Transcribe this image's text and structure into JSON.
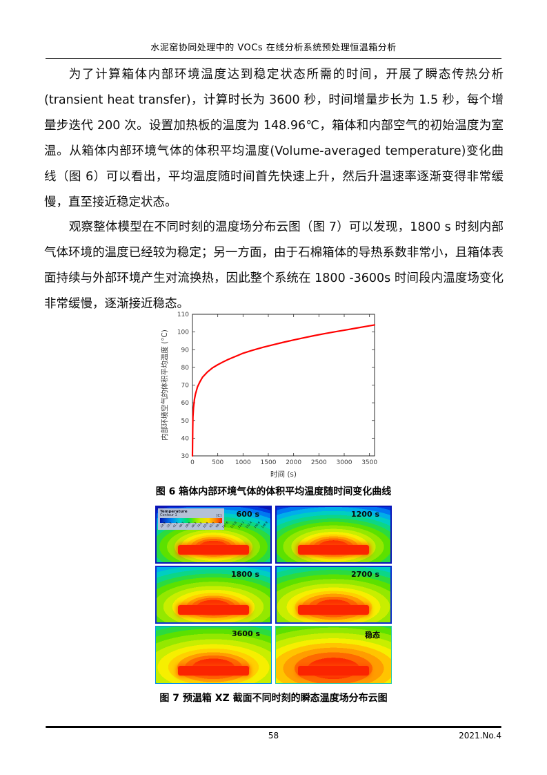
{
  "page": {
    "header": {
      "title": "水泥窑协同处理中的 VOCs 在线分析系统预处理恒温箱分析"
    },
    "paragraphs": [
      {
        "text": "为了计算箱体内部环境温度达到稳定状态所需的时间，开展了瞬态传热分析(transient heat transfer)，计算时长为 3600 秒，时间增量步长为 1.5 秒，每个增量步迭代 200 次。设置加热板的温度为 148.96℃，箱体和内部空气的初始温度为室温。从箱体内部环境气体的体积平均温度(Volume-averaged temperature)变化曲线（图 6）可以看出，平均温度随时间首先快速上升，然后升温速率逐渐变得非常缓慢，直至接近稳定状态。"
      },
      {
        "text": "观察整体模型在不同时刻的温度场分布云图（图 7）可以发现，1800 s 时刻内部气体环境的温度已经较为稳定；另一方面，由于石棉箱体的导热系数非常小，且箱体表面持续与外部环境产生对流换热，因此整个系统在 1800 -3600s 时间段内温度场变化非常缓慢，逐渐接近稳态。"
      }
    ],
    "figure6": {
      "caption": "图 6 箱体内部环境气体的体积平均温度随时间变化曲线"
    },
    "figure7": {
      "caption": "图 7 预温箱 XZ 截面不同时刻的瞬态温度场分布云图",
      "panels": [
        {
          "label": "600 s"
        },
        {
          "label": "1200 s"
        },
        {
          "label": "1800 s"
        },
        {
          "label": "2700 s"
        },
        {
          "label": "3600 s"
        },
        {
          "label": "稳态"
        }
      ],
      "legend": {
        "title": "Temperature",
        "subtitle": "Contour 1",
        "unit": "[C]",
        "ticks": [
          "24.9",
          "33.2",
          "41.4",
          "49.7",
          "58.0",
          "66.2",
          "74.5",
          "82.8",
          "91.0",
          "99.3",
          "107.6",
          "115.8",
          "124.1",
          "132.4",
          "140.6",
          "148.9"
        ]
      }
    },
    "footer": {
      "page_number": "58",
      "issue": "2021.No.4"
    }
  },
  "chart_data": {
    "type": "line",
    "title": "",
    "xlabel": "时间 (s)",
    "ylabel": "内部环境空气的体积平均温度 (°C)",
    "xlim": [
      0,
      3600
    ],
    "ylim": [
      30,
      110
    ],
    "xticks": [
      0,
      500,
      1000,
      1500,
      2000,
      2500,
      3000,
      3500
    ],
    "yticks": [
      30,
      40,
      50,
      60,
      70,
      80,
      90,
      100,
      110
    ],
    "grid": false,
    "legend_position": "none",
    "line_color": "#ff0000",
    "series": [
      {
        "name": "体积平均温度",
        "x": [
          0,
          5,
          10,
          20,
          40,
          60,
          80,
          100,
          150,
          200,
          300,
          400,
          500,
          600,
          700,
          800,
          900,
          1000,
          1200,
          1400,
          1600,
          1800,
          2000,
          2200,
          2400,
          2600,
          2800,
          3000,
          3200,
          3400,
          3600
        ],
        "y": [
          30,
          45,
          52,
          57,
          62,
          65,
          67,
          69,
          72,
          74.5,
          77.5,
          79.8,
          81.5,
          83,
          84.4,
          85.6,
          86.8,
          88,
          89.8,
          91.4,
          92.8,
          94.2,
          95.5,
          96.7,
          97.9,
          99,
          100,
          101,
          102,
          103,
          104
        ]
      }
    ]
  }
}
